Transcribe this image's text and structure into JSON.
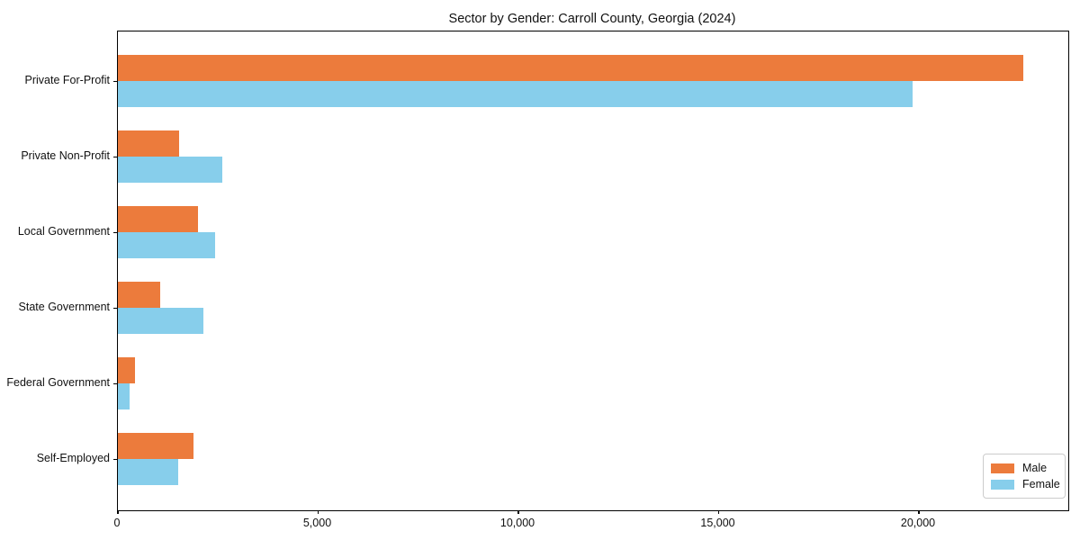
{
  "chart_data": {
    "type": "bar",
    "orientation": "horizontal",
    "title": "Sector by Gender: Carroll County, Georgia (2024)",
    "categories": [
      "Private For-Profit",
      "Private Non-Profit",
      "Local Government",
      "State Government",
      "Federal Government",
      "Self-Employed"
    ],
    "series": [
      {
        "name": "Male",
        "color": "#ec7b3c",
        "values": [
          22600,
          1530,
          1990,
          1050,
          430,
          1890
        ]
      },
      {
        "name": "Female",
        "color": "#87ceeb",
        "values": [
          19850,
          2610,
          2430,
          2130,
          280,
          1500
        ]
      }
    ],
    "xlabel": "",
    "ylabel": "",
    "xlim": [
      0,
      23730
    ],
    "x_ticks": [
      0,
      5000,
      10000,
      15000,
      20000
    ],
    "x_tick_labels": [
      "0",
      "5,000",
      "10,000",
      "15,000",
      "20,000"
    ],
    "grid": false,
    "legend": {
      "position": "lower right"
    }
  }
}
